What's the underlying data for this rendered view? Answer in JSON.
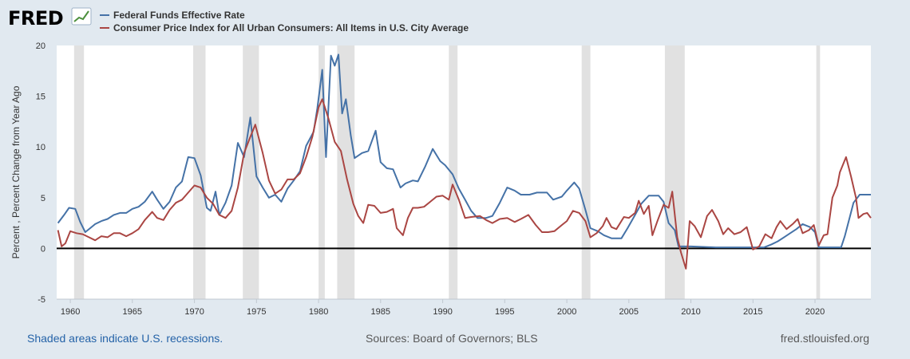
{
  "header": {
    "logo_text": "FRED",
    "legend": [
      {
        "label": "Federal Funds Effective Rate",
        "color": "#4572a7"
      },
      {
        "label": "Consumer Price Index for All Urban Consumers: All Items in U.S. City Average",
        "color": "#aa4643"
      }
    ]
  },
  "footer": {
    "note": "Shaded areas indicate U.S. recessions.",
    "sources": "Sources: Board of Governors; BLS",
    "url": "fred.stlouisfed.org"
  },
  "chart_data": {
    "type": "line",
    "title": "",
    "xlabel": "",
    "ylabel": "Percent , Percent Change from Year Ago",
    "xlim": [
      1958.9,
      2024.5
    ],
    "ylim": [
      -5,
      20
    ],
    "x_ticks": [
      "1960",
      "1965",
      "1970",
      "1975",
      "1980",
      "1985",
      "1990",
      "1995",
      "2000",
      "2005",
      "2010",
      "2015",
      "2020"
    ],
    "y_ticks": [
      "20",
      "15",
      "10",
      "5",
      "0",
      "-5"
    ],
    "grid": "none",
    "legend_position": "top-left",
    "recessions": [
      [
        1960.3,
        1961.1
      ],
      [
        1969.9,
        1970.9
      ],
      [
        1973.9,
        1975.2
      ],
      [
        1980.0,
        1980.5
      ],
      [
        1981.5,
        1982.9
      ],
      [
        1990.5,
        1991.2
      ],
      [
        2001.2,
        2001.9
      ],
      [
        2007.9,
        2009.5
      ],
      [
        2020.1,
        2020.4
      ]
    ],
    "series": [
      {
        "name": "Federal Funds Effective Rate",
        "color": "#4572a7",
        "points": [
          [
            1959.0,
            2.5
          ],
          [
            1959.5,
            3.3
          ],
          [
            1959.9,
            4.0
          ],
          [
            1960.4,
            3.9
          ],
          [
            1960.8,
            2.6
          ],
          [
            1961.2,
            1.6
          ],
          [
            1961.6,
            2.0
          ],
          [
            1962.0,
            2.4
          ],
          [
            1962.5,
            2.7
          ],
          [
            1963.0,
            2.9
          ],
          [
            1963.5,
            3.3
          ],
          [
            1964.0,
            3.5
          ],
          [
            1964.5,
            3.5
          ],
          [
            1965.0,
            3.9
          ],
          [
            1965.5,
            4.1
          ],
          [
            1966.0,
            4.6
          ],
          [
            1966.6,
            5.6
          ],
          [
            1967.0,
            4.8
          ],
          [
            1967.5,
            3.9
          ],
          [
            1968.0,
            4.6
          ],
          [
            1968.5,
            6.0
          ],
          [
            1969.0,
            6.6
          ],
          [
            1969.5,
            9.0
          ],
          [
            1970.0,
            8.9
          ],
          [
            1970.5,
            7.2
          ],
          [
            1971.0,
            4.0
          ],
          [
            1971.3,
            3.7
          ],
          [
            1971.7,
            5.6
          ],
          [
            1972.0,
            3.3
          ],
          [
            1972.5,
            4.5
          ],
          [
            1973.0,
            6.2
          ],
          [
            1973.5,
            10.4
          ],
          [
            1974.0,
            9.0
          ],
          [
            1974.5,
            12.9
          ],
          [
            1975.0,
            7.1
          ],
          [
            1975.5,
            6.0
          ],
          [
            1976.0,
            5.0
          ],
          [
            1976.5,
            5.3
          ],
          [
            1977.0,
            4.6
          ],
          [
            1977.5,
            5.9
          ],
          [
            1978.0,
            6.7
          ],
          [
            1978.5,
            7.6
          ],
          [
            1979.0,
            10.1
          ],
          [
            1979.6,
            11.5
          ],
          [
            1979.9,
            13.8
          ],
          [
            1980.3,
            17.6
          ],
          [
            1980.6,
            9.0
          ],
          [
            1981.0,
            19.0
          ],
          [
            1981.3,
            18.0
          ],
          [
            1981.6,
            19.1
          ],
          [
            1981.9,
            13.3
          ],
          [
            1982.2,
            14.7
          ],
          [
            1982.6,
            11.1
          ],
          [
            1982.9,
            8.9
          ],
          [
            1983.5,
            9.4
          ],
          [
            1984.0,
            9.6
          ],
          [
            1984.6,
            11.6
          ],
          [
            1985.0,
            8.5
          ],
          [
            1985.5,
            7.9
          ],
          [
            1986.0,
            7.8
          ],
          [
            1986.6,
            6.0
          ],
          [
            1987.0,
            6.4
          ],
          [
            1987.6,
            6.7
          ],
          [
            1988.0,
            6.6
          ],
          [
            1988.6,
            8.1
          ],
          [
            1989.2,
            9.8
          ],
          [
            1989.8,
            8.6
          ],
          [
            1990.2,
            8.2
          ],
          [
            1990.8,
            7.3
          ],
          [
            1991.3,
            5.9
          ],
          [
            1991.8,
            4.8
          ],
          [
            1992.3,
            3.7
          ],
          [
            1992.8,
            3.0
          ],
          [
            1993.5,
            3.0
          ],
          [
            1994.0,
            3.2
          ],
          [
            1994.6,
            4.5
          ],
          [
            1995.2,
            6.0
          ],
          [
            1995.8,
            5.7
          ],
          [
            1996.3,
            5.3
          ],
          [
            1997.0,
            5.3
          ],
          [
            1997.6,
            5.5
          ],
          [
            1998.4,
            5.5
          ],
          [
            1998.9,
            4.8
          ],
          [
            1999.6,
            5.1
          ],
          [
            2000.0,
            5.7
          ],
          [
            2000.6,
            6.5
          ],
          [
            2001.0,
            5.9
          ],
          [
            2001.5,
            3.8
          ],
          [
            2001.9,
            2.0
          ],
          [
            2002.5,
            1.7
          ],
          [
            2003.0,
            1.3
          ],
          [
            2003.6,
            1.0
          ],
          [
            2004.4,
            1.0
          ],
          [
            2004.9,
            2.0
          ],
          [
            2005.5,
            3.3
          ],
          [
            2006.0,
            4.4
          ],
          [
            2006.6,
            5.2
          ],
          [
            2007.4,
            5.2
          ],
          [
            2007.8,
            4.6
          ],
          [
            2008.2,
            2.5
          ],
          [
            2008.7,
            1.8
          ],
          [
            2009.0,
            0.2
          ],
          [
            2010.0,
            0.2
          ],
          [
            2012.0,
            0.1
          ],
          [
            2014.0,
            0.1
          ],
          [
            2015.9,
            0.1
          ],
          [
            2016.5,
            0.4
          ],
          [
            2017.0,
            0.7
          ],
          [
            2017.5,
            1.1
          ],
          [
            2018.0,
            1.5
          ],
          [
            2018.5,
            1.9
          ],
          [
            2019.0,
            2.4
          ],
          [
            2019.6,
            2.1
          ],
          [
            2020.0,
            1.6
          ],
          [
            2020.3,
            0.1
          ],
          [
            2021.0,
            0.1
          ],
          [
            2022.1,
            0.1
          ],
          [
            2022.4,
            1.2
          ],
          [
            2022.8,
            3.1
          ],
          [
            2023.1,
            4.5
          ],
          [
            2023.6,
            5.3
          ],
          [
            2024.5,
            5.3
          ]
        ]
      },
      {
        "name": "Consumer Price Index for All Urban Consumers: All Items in U.S. City Average",
        "color": "#aa4643",
        "points": [
          [
            1959.0,
            1.8
          ],
          [
            1959.3,
            0.2
          ],
          [
            1959.6,
            0.5
          ],
          [
            1960.0,
            1.7
          ],
          [
            1960.5,
            1.5
          ],
          [
            1961.0,
            1.4
          ],
          [
            1961.5,
            1.1
          ],
          [
            1962.0,
            0.8
          ],
          [
            1962.5,
            1.2
          ],
          [
            1963.0,
            1.1
          ],
          [
            1963.5,
            1.5
          ],
          [
            1964.0,
            1.5
          ],
          [
            1964.5,
            1.2
          ],
          [
            1965.0,
            1.5
          ],
          [
            1965.5,
            1.9
          ],
          [
            1966.0,
            2.8
          ],
          [
            1966.6,
            3.6
          ],
          [
            1967.0,
            3.0
          ],
          [
            1967.5,
            2.8
          ],
          [
            1968.0,
            3.8
          ],
          [
            1968.5,
            4.5
          ],
          [
            1969.0,
            4.8
          ],
          [
            1969.5,
            5.5
          ],
          [
            1970.0,
            6.2
          ],
          [
            1970.5,
            6.0
          ],
          [
            1971.0,
            5.0
          ],
          [
            1971.5,
            4.4
          ],
          [
            1972.0,
            3.3
          ],
          [
            1972.5,
            3.0
          ],
          [
            1973.0,
            3.7
          ],
          [
            1973.5,
            6.0
          ],
          [
            1974.0,
            9.4
          ],
          [
            1974.5,
            11.0
          ],
          [
            1974.9,
            12.2
          ],
          [
            1975.5,
            9.4
          ],
          [
            1976.0,
            6.7
          ],
          [
            1976.5,
            5.4
          ],
          [
            1977.0,
            5.8
          ],
          [
            1977.5,
            6.8
          ],
          [
            1978.0,
            6.8
          ],
          [
            1978.5,
            7.4
          ],
          [
            1979.0,
            9.0
          ],
          [
            1979.5,
            11.0
          ],
          [
            1980.0,
            13.9
          ],
          [
            1980.3,
            14.7
          ],
          [
            1980.8,
            12.8
          ],
          [
            1981.3,
            10.5
          ],
          [
            1981.8,
            9.6
          ],
          [
            1982.3,
            6.8
          ],
          [
            1982.8,
            4.4
          ],
          [
            1983.2,
            3.2
          ],
          [
            1983.6,
            2.5
          ],
          [
            1984.0,
            4.3
          ],
          [
            1984.5,
            4.2
          ],
          [
            1985.0,
            3.5
          ],
          [
            1985.5,
            3.6
          ],
          [
            1986.0,
            3.9
          ],
          [
            1986.3,
            2.0
          ],
          [
            1986.8,
            1.3
          ],
          [
            1987.2,
            3.0
          ],
          [
            1987.6,
            4.0
          ],
          [
            1988.0,
            4.0
          ],
          [
            1988.5,
            4.1
          ],
          [
            1989.0,
            4.6
          ],
          [
            1989.5,
            5.1
          ],
          [
            1990.0,
            5.2
          ],
          [
            1990.5,
            4.8
          ],
          [
            1990.8,
            6.3
          ],
          [
            1991.3,
            4.8
          ],
          [
            1991.8,
            3.0
          ],
          [
            1992.3,
            3.1
          ],
          [
            1993.0,
            3.2
          ],
          [
            1993.5,
            2.8
          ],
          [
            1994.0,
            2.5
          ],
          [
            1994.6,
            2.9
          ],
          [
            1995.2,
            3.0
          ],
          [
            1995.8,
            2.6
          ],
          [
            1996.3,
            2.9
          ],
          [
            1996.9,
            3.3
          ],
          [
            1997.5,
            2.3
          ],
          [
            1998.0,
            1.6
          ],
          [
            1998.5,
            1.6
          ],
          [
            1999.0,
            1.7
          ],
          [
            1999.6,
            2.3
          ],
          [
            2000.0,
            2.7
          ],
          [
            2000.5,
            3.7
          ],
          [
            2001.0,
            3.5
          ],
          [
            2001.5,
            2.7
          ],
          [
            2001.9,
            1.1
          ],
          [
            2002.4,
            1.5
          ],
          [
            2002.9,
            2.2
          ],
          [
            2003.2,
            3.0
          ],
          [
            2003.6,
            2.1
          ],
          [
            2004.0,
            1.9
          ],
          [
            2004.6,
            3.1
          ],
          [
            2005.0,
            3.0
          ],
          [
            2005.5,
            3.5
          ],
          [
            2005.8,
            4.7
          ],
          [
            2006.2,
            3.4
          ],
          [
            2006.6,
            4.2
          ],
          [
            2006.9,
            1.3
          ],
          [
            2007.3,
            2.7
          ],
          [
            2007.8,
            4.3
          ],
          [
            2008.2,
            4.0
          ],
          [
            2008.5,
            5.6
          ],
          [
            2008.9,
            1.1
          ],
          [
            2009.2,
            -0.4
          ],
          [
            2009.6,
            -2.0
          ],
          [
            2009.9,
            2.7
          ],
          [
            2010.3,
            2.2
          ],
          [
            2010.8,
            1.1
          ],
          [
            2011.3,
            3.2
          ],
          [
            2011.7,
            3.8
          ],
          [
            2012.2,
            2.7
          ],
          [
            2012.6,
            1.4
          ],
          [
            2013.0,
            2.0
          ],
          [
            2013.5,
            1.4
          ],
          [
            2014.0,
            1.6
          ],
          [
            2014.5,
            2.1
          ],
          [
            2015.0,
            -0.1
          ],
          [
            2015.5,
            0.2
          ],
          [
            2016.0,
            1.4
          ],
          [
            2016.5,
            1.0
          ],
          [
            2016.9,
            2.1
          ],
          [
            2017.2,
            2.7
          ],
          [
            2017.7,
            1.9
          ],
          [
            2018.2,
            2.4
          ],
          [
            2018.6,
            2.9
          ],
          [
            2019.0,
            1.5
          ],
          [
            2019.5,
            1.8
          ],
          [
            2019.9,
            2.3
          ],
          [
            2020.3,
            0.3
          ],
          [
            2020.7,
            1.3
          ],
          [
            2021.0,
            1.4
          ],
          [
            2021.4,
            5.0
          ],
          [
            2021.8,
            6.2
          ],
          [
            2022.0,
            7.5
          ],
          [
            2022.5,
            9.0
          ],
          [
            2022.9,
            7.1
          ],
          [
            2023.3,
            5.0
          ],
          [
            2023.5,
            3.0
          ],
          [
            2023.9,
            3.4
          ],
          [
            2024.2,
            3.5
          ],
          [
            2024.5,
            3.0
          ]
        ]
      }
    ]
  }
}
